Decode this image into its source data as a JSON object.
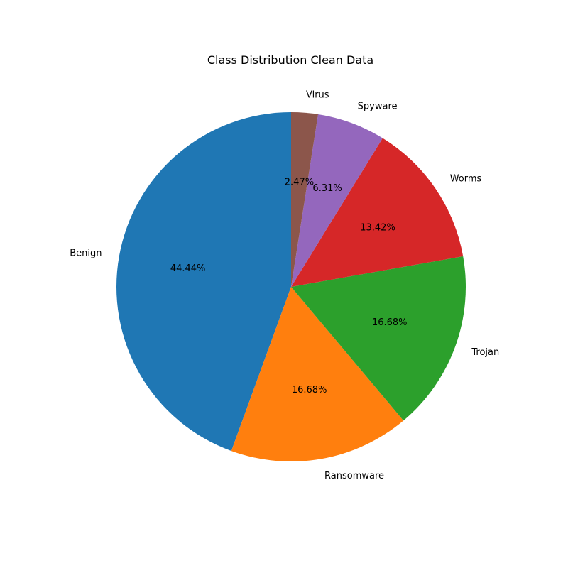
{
  "chart_data": {
    "type": "pie",
    "title": "Class Distribution Clean Data",
    "categories": [
      "Benign",
      "Ransomware",
      "Trojan",
      "Worms",
      "Spyware",
      "Virus"
    ],
    "values": [
      44.44,
      16.68,
      16.68,
      13.42,
      6.31,
      2.47
    ],
    "percent_labels": [
      "44.44%",
      "16.68%",
      "16.68%",
      "13.42%",
      "6.31%",
      "2.47%"
    ],
    "colors": [
      "#1f77b4",
      "#ff7f0e",
      "#2ca02c",
      "#d62728",
      "#9467bd",
      "#8c564b"
    ],
    "start_angle_deg": 90,
    "direction": "counterclockwise",
    "legend": "none"
  }
}
